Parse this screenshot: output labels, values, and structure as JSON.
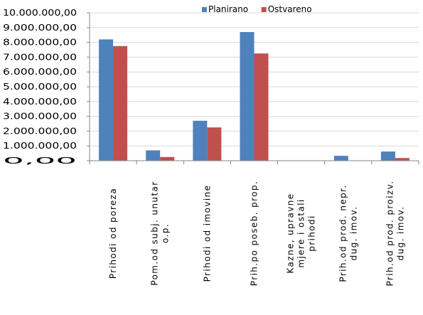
{
  "chart_data": {
    "type": "bar",
    "title": "",
    "xlabel": "",
    "ylabel": "",
    "ylim": [
      0,
      10000000
    ],
    "yticks": [
      "0,00",
      "1.000.000,00",
      "2.000.000,00",
      "3.000.000,00",
      "4.000.000,00",
      "5.000.000,00",
      "6.000.000,00",
      "7.000.000,00",
      "8.000.000,00",
      "9.000.000,00",
      "10.000.000,00"
    ],
    "categories": [
      [
        "Prihodi od poreza"
      ],
      [
        "Pom.od subj. unutar",
        "o.p."
      ],
      [
        "Prihodi od imovine"
      ],
      [
        "Prih.po poseb. prop."
      ],
      [
        "Kazne, upravne",
        "mjere i ostali",
        "prihodi"
      ],
      [
        "Prih.od prod. nepr.",
        "dug. imov."
      ],
      [
        "Prih.od prod. proizv.",
        "dug. imov."
      ]
    ],
    "series": [
      {
        "name": "Planirano",
        "color": "#4f81bd",
        "values": [
          8200000,
          700000,
          2700000,
          8700000,
          0,
          330000,
          620000
        ]
      },
      {
        "name": "Ostvareno",
        "color": "#c0504d",
        "values": [
          7750000,
          250000,
          2250000,
          7250000,
          0,
          0,
          180000
        ]
      }
    ],
    "legend_position": "top",
    "grid": true
  }
}
